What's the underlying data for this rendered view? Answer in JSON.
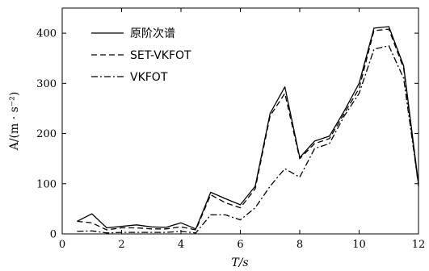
{
  "chart_data": {
    "type": "line",
    "title": "",
    "xlabel": "T/s",
    "ylabel": "A/(m · s⁻²)",
    "xlim": [
      0,
      12
    ],
    "ylim": [
      0,
      450
    ],
    "xticks": [
      "0",
      "2",
      "4",
      "6",
      "8",
      "10",
      "12"
    ],
    "yticks": [
      "0",
      "100",
      "200",
      "300",
      "400"
    ],
    "grid": false,
    "legend_position": "top-left",
    "x": [
      0.5,
      1.0,
      1.5,
      2.0,
      2.5,
      3.0,
      3.5,
      4.0,
      4.5,
      5.0,
      5.5,
      6.0,
      6.5,
      7.0,
      7.5,
      8.0,
      8.5,
      9.0,
      9.5,
      10.0,
      10.5,
      11.0,
      11.5,
      12.0
    ],
    "series": [
      {
        "name": "原阶次谱",
        "style": "solid",
        "color": "#000000",
        "values": [
          25,
          40,
          12,
          15,
          18,
          14,
          13,
          22,
          10,
          83,
          70,
          58,
          95,
          240,
          293,
          152,
          185,
          195,
          245,
          300,
          410,
          413,
          335,
          100
        ]
      },
      {
        "name": "SET-VKFOT",
        "style": "dashed",
        "color": "#000000",
        "values": [
          25,
          22,
          8,
          12,
          12,
          10,
          10,
          14,
          8,
          78,
          62,
          52,
          90,
          235,
          280,
          150,
          180,
          190,
          240,
          290,
          405,
          408,
          330,
          95
        ]
      },
      {
        "name": "VKFOT",
        "style": "dashdot",
        "color": "#000000",
        "values": [
          5,
          6,
          2,
          3,
          3,
          3,
          3,
          5,
          2,
          38,
          38,
          28,
          52,
          95,
          130,
          113,
          170,
          180,
          235,
          280,
          368,
          375,
          310,
          98
        ]
      }
    ]
  }
}
